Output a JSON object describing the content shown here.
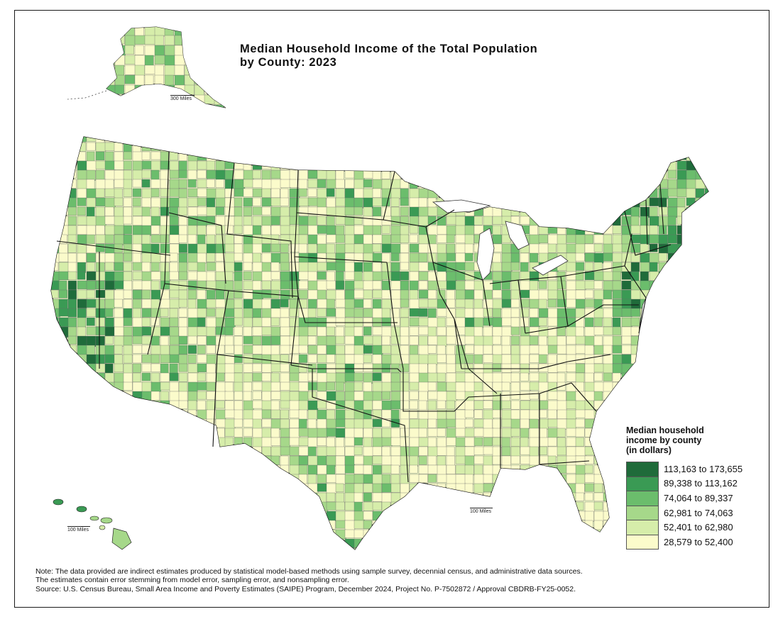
{
  "title": {
    "line1": "Median Household Income of the Total Population",
    "line2": "by County: 2023"
  },
  "legend": {
    "title_lines": [
      "Median household",
      "income by county",
      "(in dollars)"
    ],
    "classes": [
      {
        "label": "113,163 to 173,655",
        "color": "#1f6b3a"
      },
      {
        "label": "89,338 to 113,162",
        "color": "#3a9a54"
      },
      {
        "label": "74,064 to 89,337",
        "color": "#6bbd6c"
      },
      {
        "label": "62,981 to 74,063",
        "color": "#a6d88a"
      },
      {
        "label": "52,401 to 62,980",
        "color": "#d6edaa"
      },
      {
        "label": "28,579 to 52,400",
        "color": "#fbfbcb"
      }
    ]
  },
  "scale_bars": {
    "alaska": "300 Miles",
    "hawaii": "100 Miles",
    "conus": "100 Miles"
  },
  "notes": [
    "Note: The data provided are indirect estimates produced by statistical model-based methods using sample survey, decennial census, and administrative data sources.",
    "The estimates contain error stemming from model error, sampling error, and nonsampling error.",
    "Source: U.S. Census Bureau, Small Area Income and Poverty Estimates (SAIPE) Program, December 2024, Project No. P-7502872 / Approval CBDRB-FY25-0052."
  ]
}
